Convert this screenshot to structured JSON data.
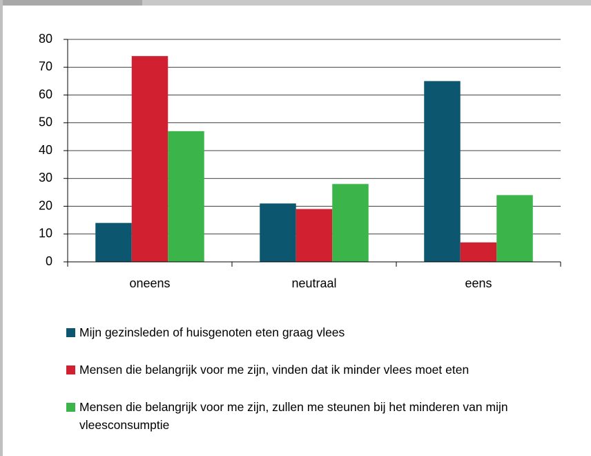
{
  "chart_data": {
    "type": "bar",
    "categories": [
      "oneens",
      "neutraal",
      "eens"
    ],
    "series": [
      {
        "name": "Mijn gezinsleden of huisgenoten eten graag vlees",
        "color": "#0c5670",
        "values": [
          14,
          21,
          65
        ]
      },
      {
        "name": "Mensen die belangrijk voor me zijn, vinden dat ik minder vlees moet eten",
        "color": "#d1202f",
        "values": [
          74,
          19,
          7
        ]
      },
      {
        "name": "Mensen die belangrijk voor me zijn, zullen me steunen bij het minderen van mijn vleesconsumptie",
        "color": "#3bb54a",
        "values": [
          47,
          28,
          24
        ]
      }
    ],
    "ylim": [
      0,
      80
    ],
    "yticks": [
      0,
      10,
      20,
      30,
      40,
      50,
      60,
      70,
      80
    ],
    "grid": true,
    "legend": "bottom"
  }
}
